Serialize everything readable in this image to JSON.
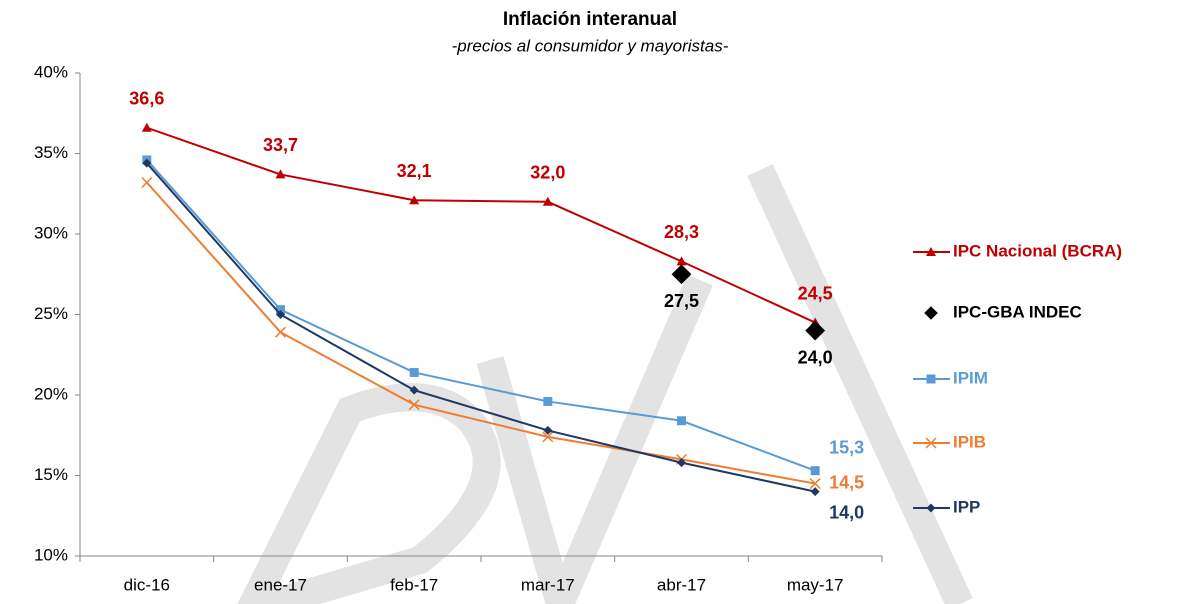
{
  "chart_data": {
    "type": "line",
    "title": "Inflación interanual",
    "subtitle": "-precios al consumidor y mayoristas-",
    "categories": [
      "dic-16",
      "ene-17",
      "feb-17",
      "mar-17",
      "abr-17",
      "may-17"
    ],
    "ylim": [
      10,
      40
    ],
    "yticks": [
      {
        "value": 10,
        "label": "10%"
      },
      {
        "value": 15,
        "label": "15%"
      },
      {
        "value": 20,
        "label": "20%"
      },
      {
        "value": 25,
        "label": "25%"
      },
      {
        "value": 30,
        "label": "30%"
      },
      {
        "value": 35,
        "label": "35%"
      },
      {
        "value": 40,
        "label": "40%"
      }
    ],
    "legend": "right",
    "series": [
      {
        "name": "IPC Nacional (BCRA)",
        "color": "#c00000",
        "marker": "triangle",
        "line": true,
        "values": [
          36.6,
          33.7,
          32.1,
          32.0,
          28.3,
          24.5
        ],
        "value_labels": [
          "36,6",
          "33,7",
          "32,1",
          "32,0",
          "28,3",
          "24,5"
        ]
      },
      {
        "name": "IPC-GBA INDEC",
        "color": "#000000",
        "marker": "diamond",
        "line": false,
        "values": [
          null,
          null,
          null,
          null,
          27.5,
          24.0
        ],
        "value_labels": [
          null,
          null,
          null,
          null,
          "27,5",
          "24,0"
        ]
      },
      {
        "name": "IPIM",
        "color": "#5b9bd5",
        "marker": "square",
        "line": true,
        "values": [
          34.6,
          25.3,
          21.4,
          19.6,
          18.4,
          15.3
        ],
        "value_labels": [
          null,
          null,
          null,
          null,
          null,
          "15,3"
        ]
      },
      {
        "name": "IPIB",
        "color": "#ed7d31",
        "marker": "x",
        "line": true,
        "values": [
          33.2,
          23.9,
          19.4,
          17.4,
          16.0,
          14.5
        ],
        "value_labels": [
          null,
          null,
          null,
          null,
          null,
          "14,5"
        ]
      },
      {
        "name": "IPP",
        "color": "#1f3864",
        "marker": "diamond",
        "line": true,
        "values": [
          34.4,
          25.0,
          20.3,
          17.8,
          15.8,
          14.0
        ],
        "value_labels": [
          null,
          null,
          null,
          null,
          null,
          "14,0"
        ]
      }
    ]
  }
}
